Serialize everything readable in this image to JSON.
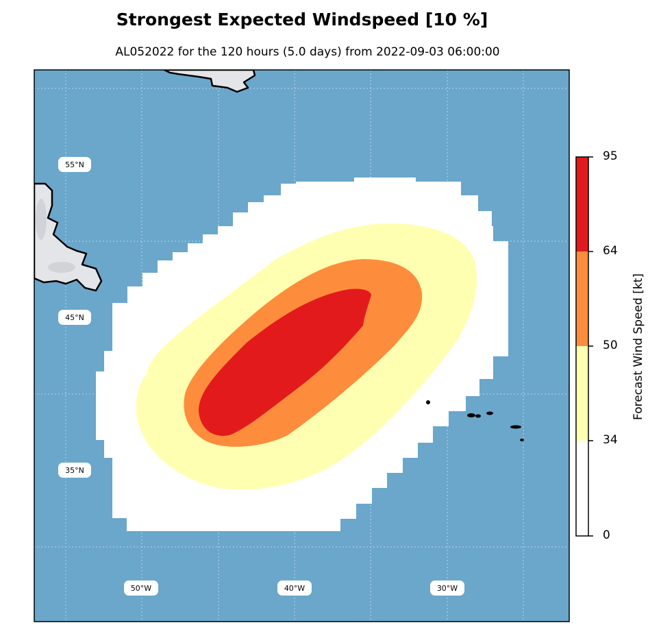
{
  "title": "Strongest Expected Windspeed [10 %]",
  "subtitle": "AL052022 for the 120 hours (5.0 days) from 2022-09-03 06:00:00",
  "map": {
    "ocean_color": "#6ba6cb",
    "land_color": "#e3e5e8",
    "coast_color": "#000000",
    "lat_labels": [
      "55°N",
      "45°N",
      "35°N"
    ],
    "lon_labels": [
      "50°W",
      "40°W",
      "30°W"
    ]
  },
  "wind_bands": [
    {
      "min": 0,
      "max": 34,
      "color": "#ffffff"
    },
    {
      "min": 34,
      "max": 50,
      "color": "#ffffb2"
    },
    {
      "min": 50,
      "max": 64,
      "color": "#fd8d3c"
    },
    {
      "min": 64,
      "max": 95,
      "color": "#e31a1c"
    }
  ],
  "colorbar": {
    "label": "Forecast Wind Speed [kt]",
    "ticks": [
      "95",
      "64",
      "50",
      "34",
      "0"
    ]
  }
}
